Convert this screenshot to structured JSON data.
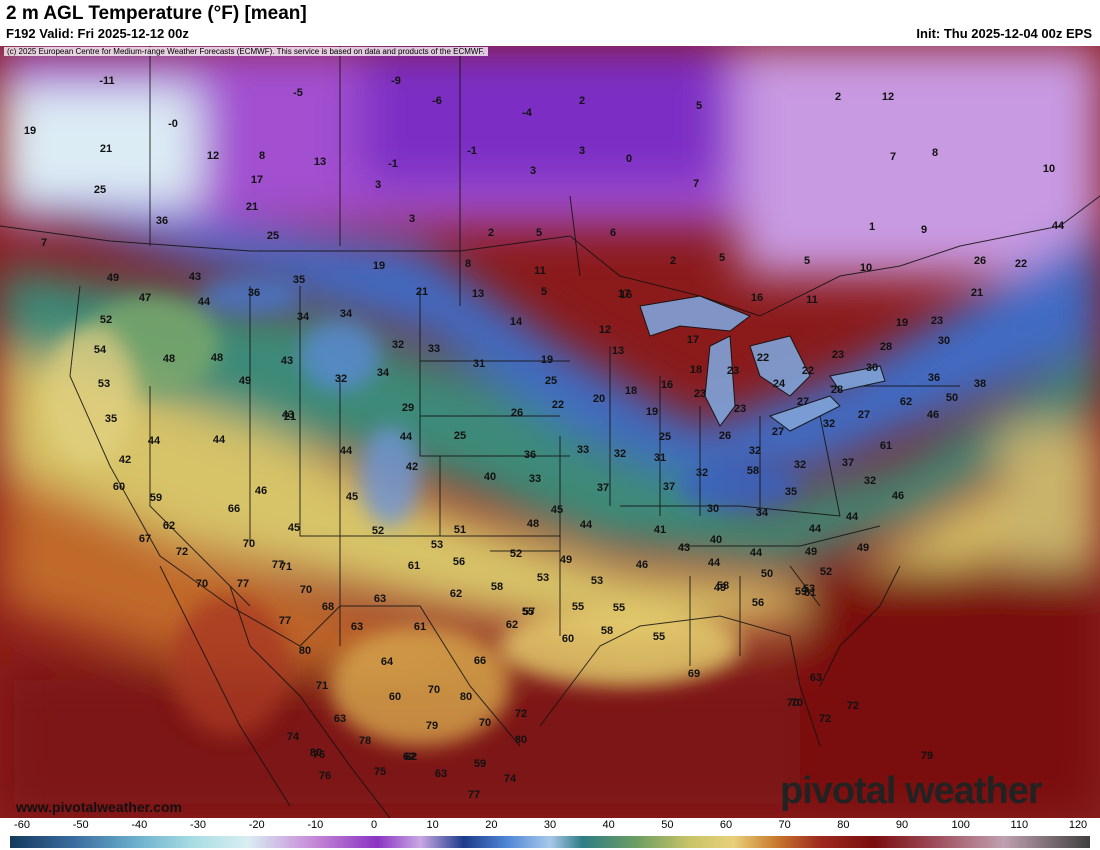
{
  "header": {
    "title": "2 m AGL Temperature (°F) [mean]",
    "valid": "F192 Valid: Fri 2025-12-12 00z",
    "init": "Init: Thu 2025-12-04 00z EPS",
    "copyright": "(c) 2025 European Centre for Medium-range Weather Forecasts (ECMWF). This service is based on data and products of the ECMWF."
  },
  "branding": {
    "website": "www.pivotalweather.com",
    "logo": "pivotal weather"
  },
  "colorbar": {
    "ticks": [
      "-60",
      "-50",
      "-40",
      "-30",
      "-20",
      "-10",
      "0",
      "10",
      "20",
      "30",
      "40",
      "50",
      "60",
      "70",
      "80",
      "90",
      "100",
      "110",
      "120"
    ]
  },
  "labels": [
    "-11",
    "-5",
    "-9",
    "-6",
    "2",
    "-4",
    "-0",
    "-1",
    "-1",
    "3",
    "5",
    "0",
    "19",
    "21",
    "12",
    "8",
    "13",
    "3",
    "25",
    "17",
    "3",
    "7",
    "2",
    "12",
    "7",
    "8",
    "10",
    "36",
    "25",
    "21",
    "3",
    "2",
    "5",
    "6",
    "2",
    "9",
    "1",
    "5",
    "10",
    "44",
    "7",
    "5",
    "22",
    "49",
    "43",
    "36",
    "35",
    "19",
    "8",
    "11",
    "16",
    "26",
    "47",
    "44",
    "21",
    "13",
    "5",
    "17",
    "16",
    "11",
    "21",
    "52",
    "34",
    "34",
    "14",
    "12",
    "13",
    "19",
    "23",
    "54",
    "48",
    "48",
    "43",
    "32",
    "33",
    "31",
    "17",
    "22",
    "30",
    "53",
    "49",
    "32",
    "34",
    "19",
    "25",
    "18",
    "16",
    "18",
    "23",
    "24",
    "22",
    "23",
    "30",
    "28",
    "36",
    "38",
    "29",
    "22",
    "20",
    "19",
    "23",
    "28",
    "27",
    "62",
    "46",
    "35",
    "21",
    "26",
    "23",
    "27",
    "32",
    "50",
    "44",
    "44",
    "44",
    "25",
    "25",
    "26",
    "27",
    "32",
    "31",
    "58",
    "42",
    "44",
    "42",
    "36",
    "33",
    "32",
    "32",
    "37",
    "61",
    "60",
    "46",
    "43",
    "40",
    "33",
    "32",
    "32",
    "59",
    "45",
    "37",
    "30",
    "35",
    "37",
    "34",
    "46",
    "66",
    "52",
    "51",
    "48",
    "45",
    "44",
    "41",
    "44",
    "44",
    "62",
    "45",
    "53",
    "52",
    "49",
    "43",
    "40",
    "49",
    "49",
    "67",
    "72",
    "70",
    "56",
    "53",
    "46",
    "44",
    "44",
    "52",
    "77",
    "71",
    "61",
    "58",
    "55",
    "55",
    "49",
    "50",
    "53",
    "70",
    "77",
    "70",
    "53",
    "57",
    "55",
    "58",
    "56",
    "59",
    "68",
    "63",
    "62",
    "77",
    "63",
    "61",
    "60",
    "58",
    "55",
    "61",
    "80",
    "66",
    "62",
    "64",
    "70",
    "69",
    "63",
    "72",
    "71",
    "80",
    "70",
    "60",
    "63",
    "79",
    "70",
    "70",
    "72",
    "74",
    "80",
    "78",
    "80",
    "72",
    "76",
    "79",
    "62",
    "59",
    "76",
    "75",
    "62",
    "74",
    "63",
    "77"
  ],
  "legend_semantics": {
    "variable": "2 m AGL Temperature",
    "units": "°F",
    "palette": [
      "#1a3b6b",
      "#3e6aa8",
      "#8ec6e6",
      "#d8eef6",
      "#c08ad8",
      "#9b3fc9",
      "#7a2bbf",
      "#c9a9e6",
      "#e8dff2",
      "#2a4fa0",
      "#4f83d1",
      "#8fb0e8",
      "#2e7f8a",
      "#4a8a6e",
      "#7aa05e",
      "#a8b34e",
      "#e8cf6a",
      "#d8a040",
      "#c26a2a",
      "#9e2a1e",
      "#7c0e10",
      "#8a1c1c",
      "#5a1010"
    ]
  }
}
